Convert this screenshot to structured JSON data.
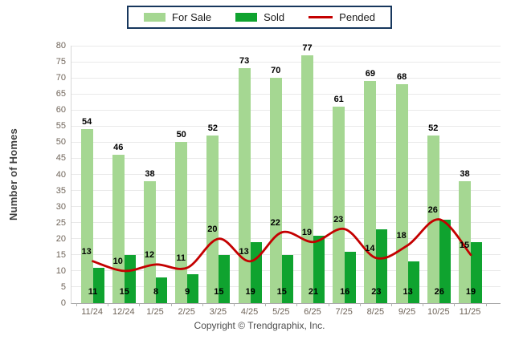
{
  "chart_data": {
    "type": "bar",
    "title": "",
    "categories": [
      "11/24",
      "12/24",
      "1/25",
      "2/25",
      "3/25",
      "4/25",
      "5/25",
      "6/25",
      "7/25",
      "8/25",
      "9/25",
      "10/25",
      "11/25"
    ],
    "series": [
      {
        "name": "For Sale",
        "type": "bar",
        "color": "#A5D792",
        "values": [
          54,
          46,
          38,
          50,
          52,
          73,
          70,
          77,
          61,
          69,
          68,
          52,
          38
        ]
      },
      {
        "name": "Sold",
        "type": "bar",
        "color": "#0FA32F",
        "values": [
          11,
          15,
          8,
          9,
          15,
          19,
          15,
          21,
          16,
          23,
          13,
          26,
          19
        ]
      },
      {
        "name": "Pended",
        "type": "line",
        "color": "#C40000",
        "values": [
          13,
          10,
          12,
          11,
          20,
          13,
          22,
          19,
          23,
          14,
          18,
          26,
          15
        ]
      }
    ],
    "xlabel": "",
    "ylabel": "Number of Homes",
    "ylim": [
      0,
      80
    ],
    "yticks": [
      0,
      5,
      10,
      15,
      20,
      25,
      30,
      35,
      40,
      45,
      50,
      55,
      60,
      65,
      70,
      75,
      80
    ],
    "grid": "horizontal",
    "legend_position": "top-center"
  },
  "footer": {
    "copyright": "Copyright © Trendgraphix, Inc."
  },
  "style": {
    "axis_text_color": "#6F6459",
    "gridline_color": "#E9E9E9",
    "legend_border_color": "#17375D",
    "value_label_color": "#000000"
  }
}
